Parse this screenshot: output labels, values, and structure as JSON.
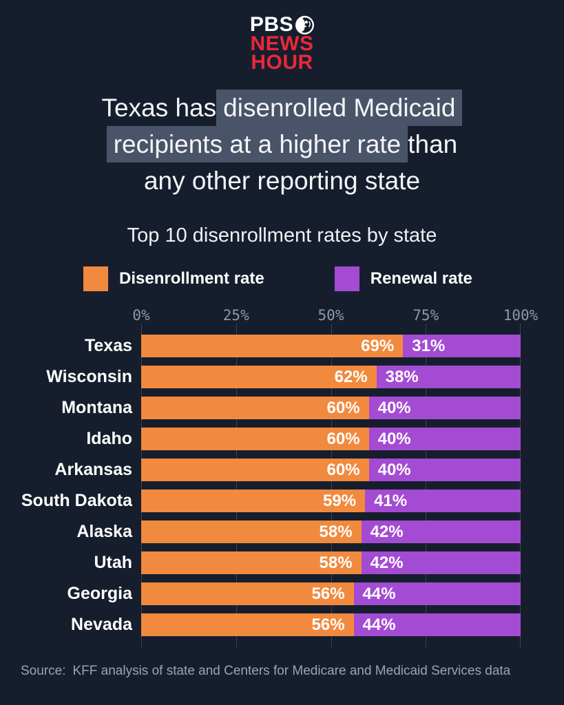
{
  "logo": {
    "line1": "PBS",
    "line2": "NEWS",
    "line3": "HOUR",
    "brand_red": "#ea2839",
    "mark": "pbs-head-icon"
  },
  "title": {
    "highlight_color": "#495468",
    "lines": [
      {
        "segments": [
          {
            "text": "Texas has",
            "highlight": false
          },
          {
            "text": "disenrolled Medicaid",
            "highlight": true
          }
        ]
      },
      {
        "segments": [
          {
            "text": "recipients at a higher rate",
            "highlight": true
          },
          {
            "text": "than",
            "highlight": false
          }
        ]
      },
      {
        "segments": [
          {
            "text": "any other reporting state",
            "highlight": false
          }
        ]
      }
    ]
  },
  "subtitle": "Top 10 disenrollment rates by state",
  "legend": {
    "items": [
      {
        "label": "Disenrollment rate",
        "color": "#f18a3e"
      },
      {
        "label": "Renewal rate",
        "color": "#a44bd3"
      }
    ]
  },
  "chart_data": {
    "type": "bar",
    "orientation": "horizontal",
    "stacked": true,
    "title": "Top 10 disenrollment rates by state",
    "categories": [
      "Texas",
      "Wisconsin",
      "Montana",
      "Idaho",
      "Arkansas",
      "South Dakota",
      "Alaska",
      "Utah",
      "Georgia",
      "Nevada"
    ],
    "series": [
      {
        "name": "Disenrollment rate",
        "color": "#f18a3e",
        "values": [
          69,
          62,
          60,
          60,
          60,
          59,
          58,
          58,
          56,
          56
        ]
      },
      {
        "name": "Renewal rate",
        "color": "#a44bd3",
        "values": [
          31,
          38,
          40,
          40,
          40,
          41,
          42,
          42,
          44,
          44
        ]
      }
    ],
    "value_suffix": "%",
    "x_ticks": [
      0,
      25,
      50,
      75,
      100
    ],
    "x_tick_labels": [
      "0%",
      "25%",
      "50%",
      "75%",
      "100%"
    ],
    "xlim": [
      0,
      100
    ],
    "grid": true,
    "legend_position": "top"
  },
  "source": {
    "label": "Source:",
    "text": "KFF analysis of state and Centers for Medicare and Medicaid Services data"
  }
}
